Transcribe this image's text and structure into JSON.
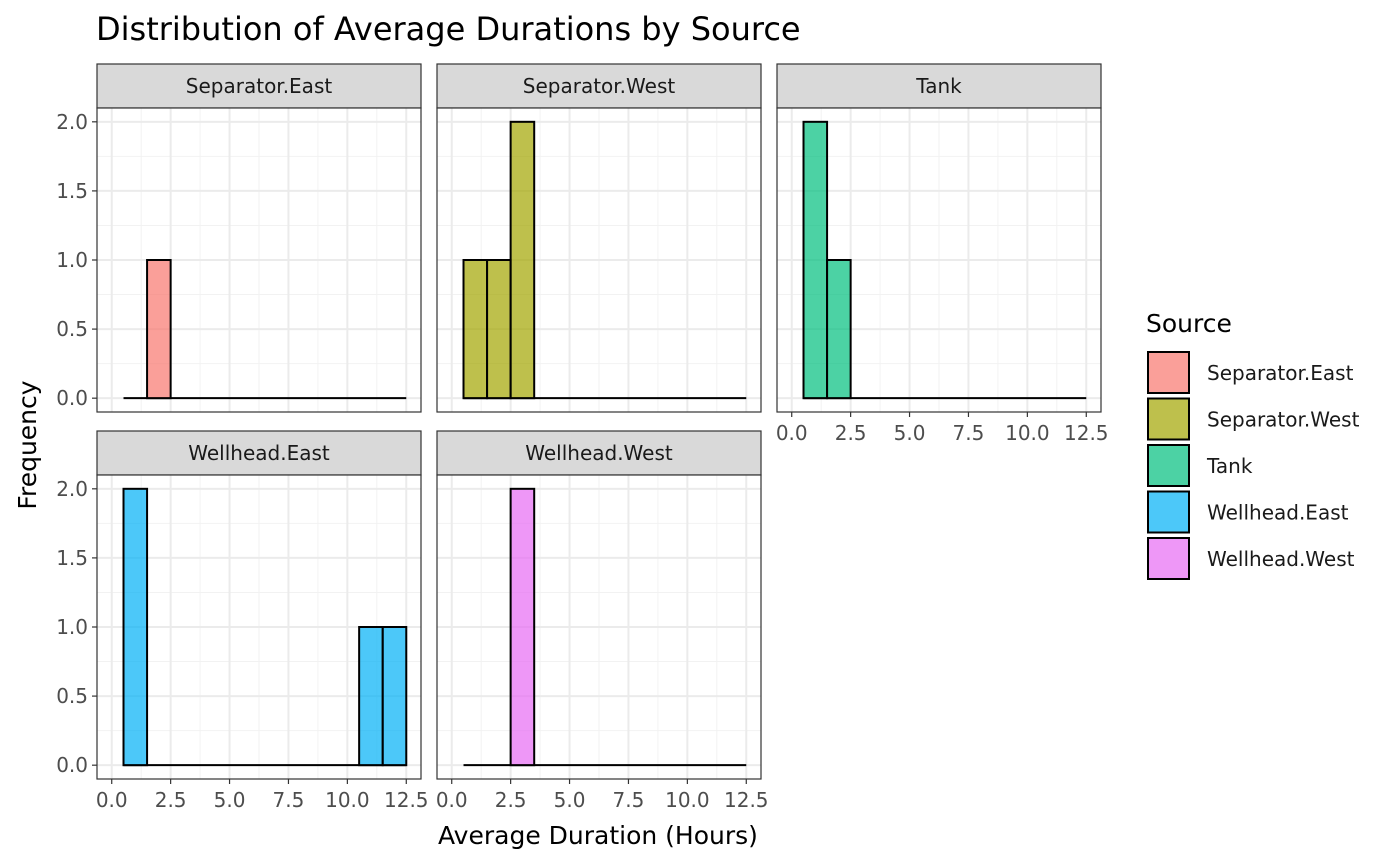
{
  "chart_data": {
    "type": "bar",
    "title": "Distribution of Average Durations by Source",
    "xlabel": "Average Duration (Hours)",
    "ylabel": "Frequency",
    "xlim": [
      0,
      12.5
    ],
    "ylim": [
      0,
      2
    ],
    "x_ticks": [
      "0.0",
      "2.5",
      "5.0",
      "7.5",
      "10.0",
      "12.5"
    ],
    "y_ticks": [
      "0.0",
      "0.5",
      "1.0",
      "1.5",
      "2.0"
    ],
    "bin_width": 1,
    "bin_start": 0.5,
    "bin_end": 12.5,
    "legend_title": "Source",
    "legend_position": "right",
    "grid": true,
    "panels": [
      {
        "name": "Separator.East",
        "color": "#F8766D",
        "bins": [
          {
            "x0": 1.5,
            "x1": 2.5,
            "count": 1
          }
        ]
      },
      {
        "name": "Separator.West",
        "color": "#A3A500",
        "bins": [
          {
            "x0": 0.5,
            "x1": 1.5,
            "count": 1
          },
          {
            "x0": 1.5,
            "x1": 2.5,
            "count": 1
          },
          {
            "x0": 2.5,
            "x1": 3.5,
            "count": 2
          }
        ]
      },
      {
        "name": "Tank",
        "color": "#00BF7D",
        "bins": [
          {
            "x0": 0.5,
            "x1": 1.5,
            "count": 2
          },
          {
            "x0": 1.5,
            "x1": 2.5,
            "count": 1
          }
        ]
      },
      {
        "name": "Wellhead.East",
        "color": "#00B0F6",
        "bins": [
          {
            "x0": 0.5,
            "x1": 1.5,
            "count": 2
          },
          {
            "x0": 10.5,
            "x1": 11.5,
            "count": 1
          },
          {
            "x0": 11.5,
            "x1": 12.5,
            "count": 1
          }
        ]
      },
      {
        "name": "Wellhead.West",
        "color": "#E76BF3",
        "bins": [
          {
            "x0": 2.5,
            "x1": 3.5,
            "count": 2
          }
        ]
      }
    ]
  }
}
